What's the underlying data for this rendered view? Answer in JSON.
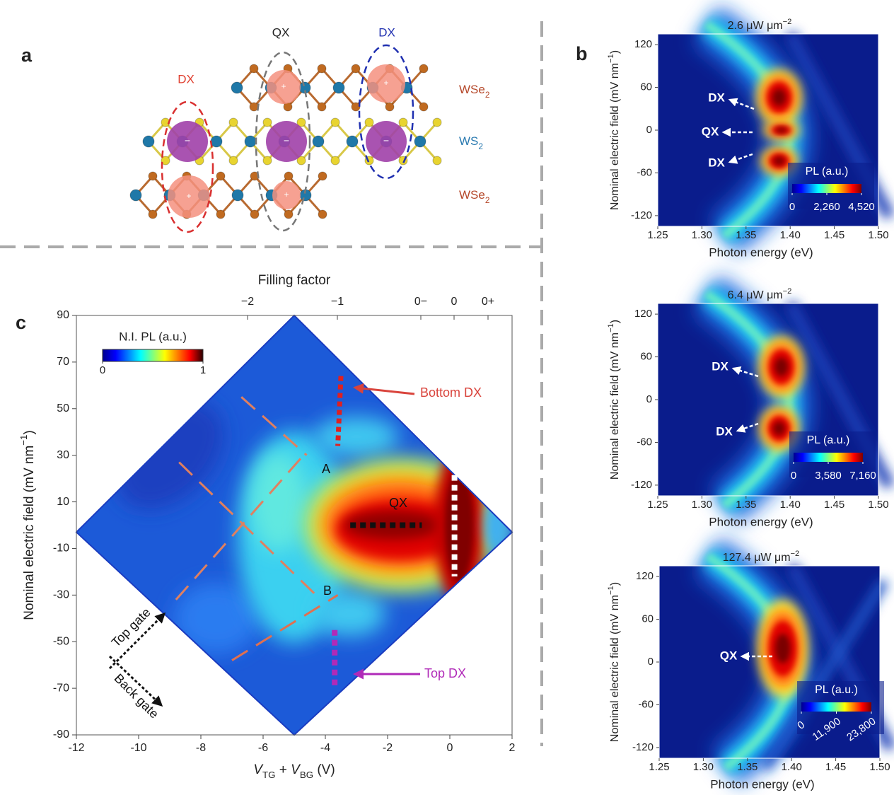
{
  "panel_labels": [
    "a",
    "b",
    "c"
  ],
  "panel_a": {
    "exciton_labels": [
      "DX",
      "QX",
      "DX"
    ],
    "layer_labels": [
      [
        "WSe",
        "2"
      ],
      [
        "WS",
        "2"
      ],
      [
        "WSe",
        "2"
      ]
    ],
    "charge_labels": {
      "electron": "−",
      "hole": "+"
    }
  },
  "chart_data": [
    {
      "type": "heatmap",
      "top_axis": {
        "label": "Filling factor",
        "ticks": [
          "−2",
          "−1",
          "0−",
          "0",
          "0+"
        ]
      },
      "xlabel_parts": [
        "V",
        "TG",
        " + ",
        "V",
        "BG",
        " (V)"
      ],
      "ylabel_parts": [
        "Nominal electric field (mV nm",
        "−1",
        ")"
      ],
      "xlim": [
        -12,
        2
      ],
      "xticks": [
        -12,
        -10,
        -8,
        -6,
        -4,
        -2,
        0,
        2
      ],
      "ylim": [
        -90,
        90
      ],
      "yticks": [
        -90,
        -70,
        -50,
        -30,
        -10,
        10,
        30,
        50,
        70,
        90
      ],
      "colorbar": {
        "label": "N.I. PL (a.u.)",
        "lim": [
          0,
          1
        ],
        "ticks": [
          0,
          1
        ]
      },
      "annotations": [
        "Bottom DX",
        "Top DX",
        "QX",
        "A",
        "B",
        "Top gate",
        "Back gate"
      ]
    },
    {
      "type": "heatmap",
      "title_parts": [
        "2.6 μW μm",
        "−2"
      ],
      "xlabel": "Photon energy (eV)",
      "ylabel_parts": [
        "Nominal electric field (mV nm",
        "−1",
        ")"
      ],
      "xlim": [
        1.25,
        1.5
      ],
      "xticks": [
        1.25,
        {
          "value": 1.3,
          "label": "1.30"
        },
        1.35,
        {
          "value": 1.4,
          "label": "1.40"
        },
        1.45,
        {
          "value": 1.5,
          "label": "1.50"
        }
      ],
      "ylim": [
        -135,
        135
      ],
      "yticks": [
        -120,
        -60,
        0,
        60,
        120
      ],
      "colorbar": {
        "label": "PL (a.u.)",
        "lim": [
          0,
          4520
        ],
        "ticks": [
          0,
          {
            "value": 2260,
            "label": "2,260"
          },
          {
            "value": 4520,
            "label": "4,520"
          }
        ]
      },
      "annotations": [
        "DX",
        "QX",
        "DX"
      ]
    },
    {
      "type": "heatmap",
      "title_parts": [
        "6.4 μW μm",
        "−2"
      ],
      "xlabel": "Photon energy (eV)",
      "ylabel_parts": [
        "Nominal electric field (mV nm",
        "−1",
        ")"
      ],
      "xlim": [
        1.25,
        1.5
      ],
      "xticks": [
        1.25,
        {
          "value": 1.3,
          "label": "1.30"
        },
        1.35,
        {
          "value": 1.4,
          "label": "1.40"
        },
        1.45,
        {
          "value": 1.5,
          "label": "1.50"
        }
      ],
      "ylim": [
        -135,
        135
      ],
      "yticks": [
        -120,
        -60,
        0,
        60,
        120
      ],
      "colorbar": {
        "label": "PL (a.u.)",
        "lim": [
          0,
          7160
        ],
        "ticks": [
          0,
          {
            "value": 3580,
            "label": "3,580"
          },
          {
            "value": 7160,
            "label": "7,160"
          }
        ]
      },
      "annotations": [
        "DX",
        "DX"
      ]
    },
    {
      "type": "heatmap",
      "title_parts": [
        "127.4 μW μm",
        "−2"
      ],
      "xlabel": "Photon energy (eV)",
      "ylabel_parts": [
        "Nominal electric field (mV nm",
        "−1",
        ")"
      ],
      "xlim": [
        1.25,
        1.5
      ],
      "xticks": [
        1.25,
        {
          "value": 1.3,
          "label": "1.30"
        },
        1.35,
        {
          "value": 1.4,
          "label": "1.40"
        },
        1.45,
        {
          "value": 1.5,
          "label": "1.50"
        }
      ],
      "ylim": [
        -135,
        135
      ],
      "yticks": [
        -120,
        -60,
        0,
        60,
        120
      ],
      "colorbar": {
        "label": "PL (a.u.)",
        "lim": [
          0,
          23800
        ],
        "ticks": [
          0,
          {
            "value": 11900,
            "label": "11,900"
          },
          {
            "value": 23800,
            "label": "23,800"
          }
        ]
      },
      "annotations": [
        "QX"
      ]
    }
  ]
}
